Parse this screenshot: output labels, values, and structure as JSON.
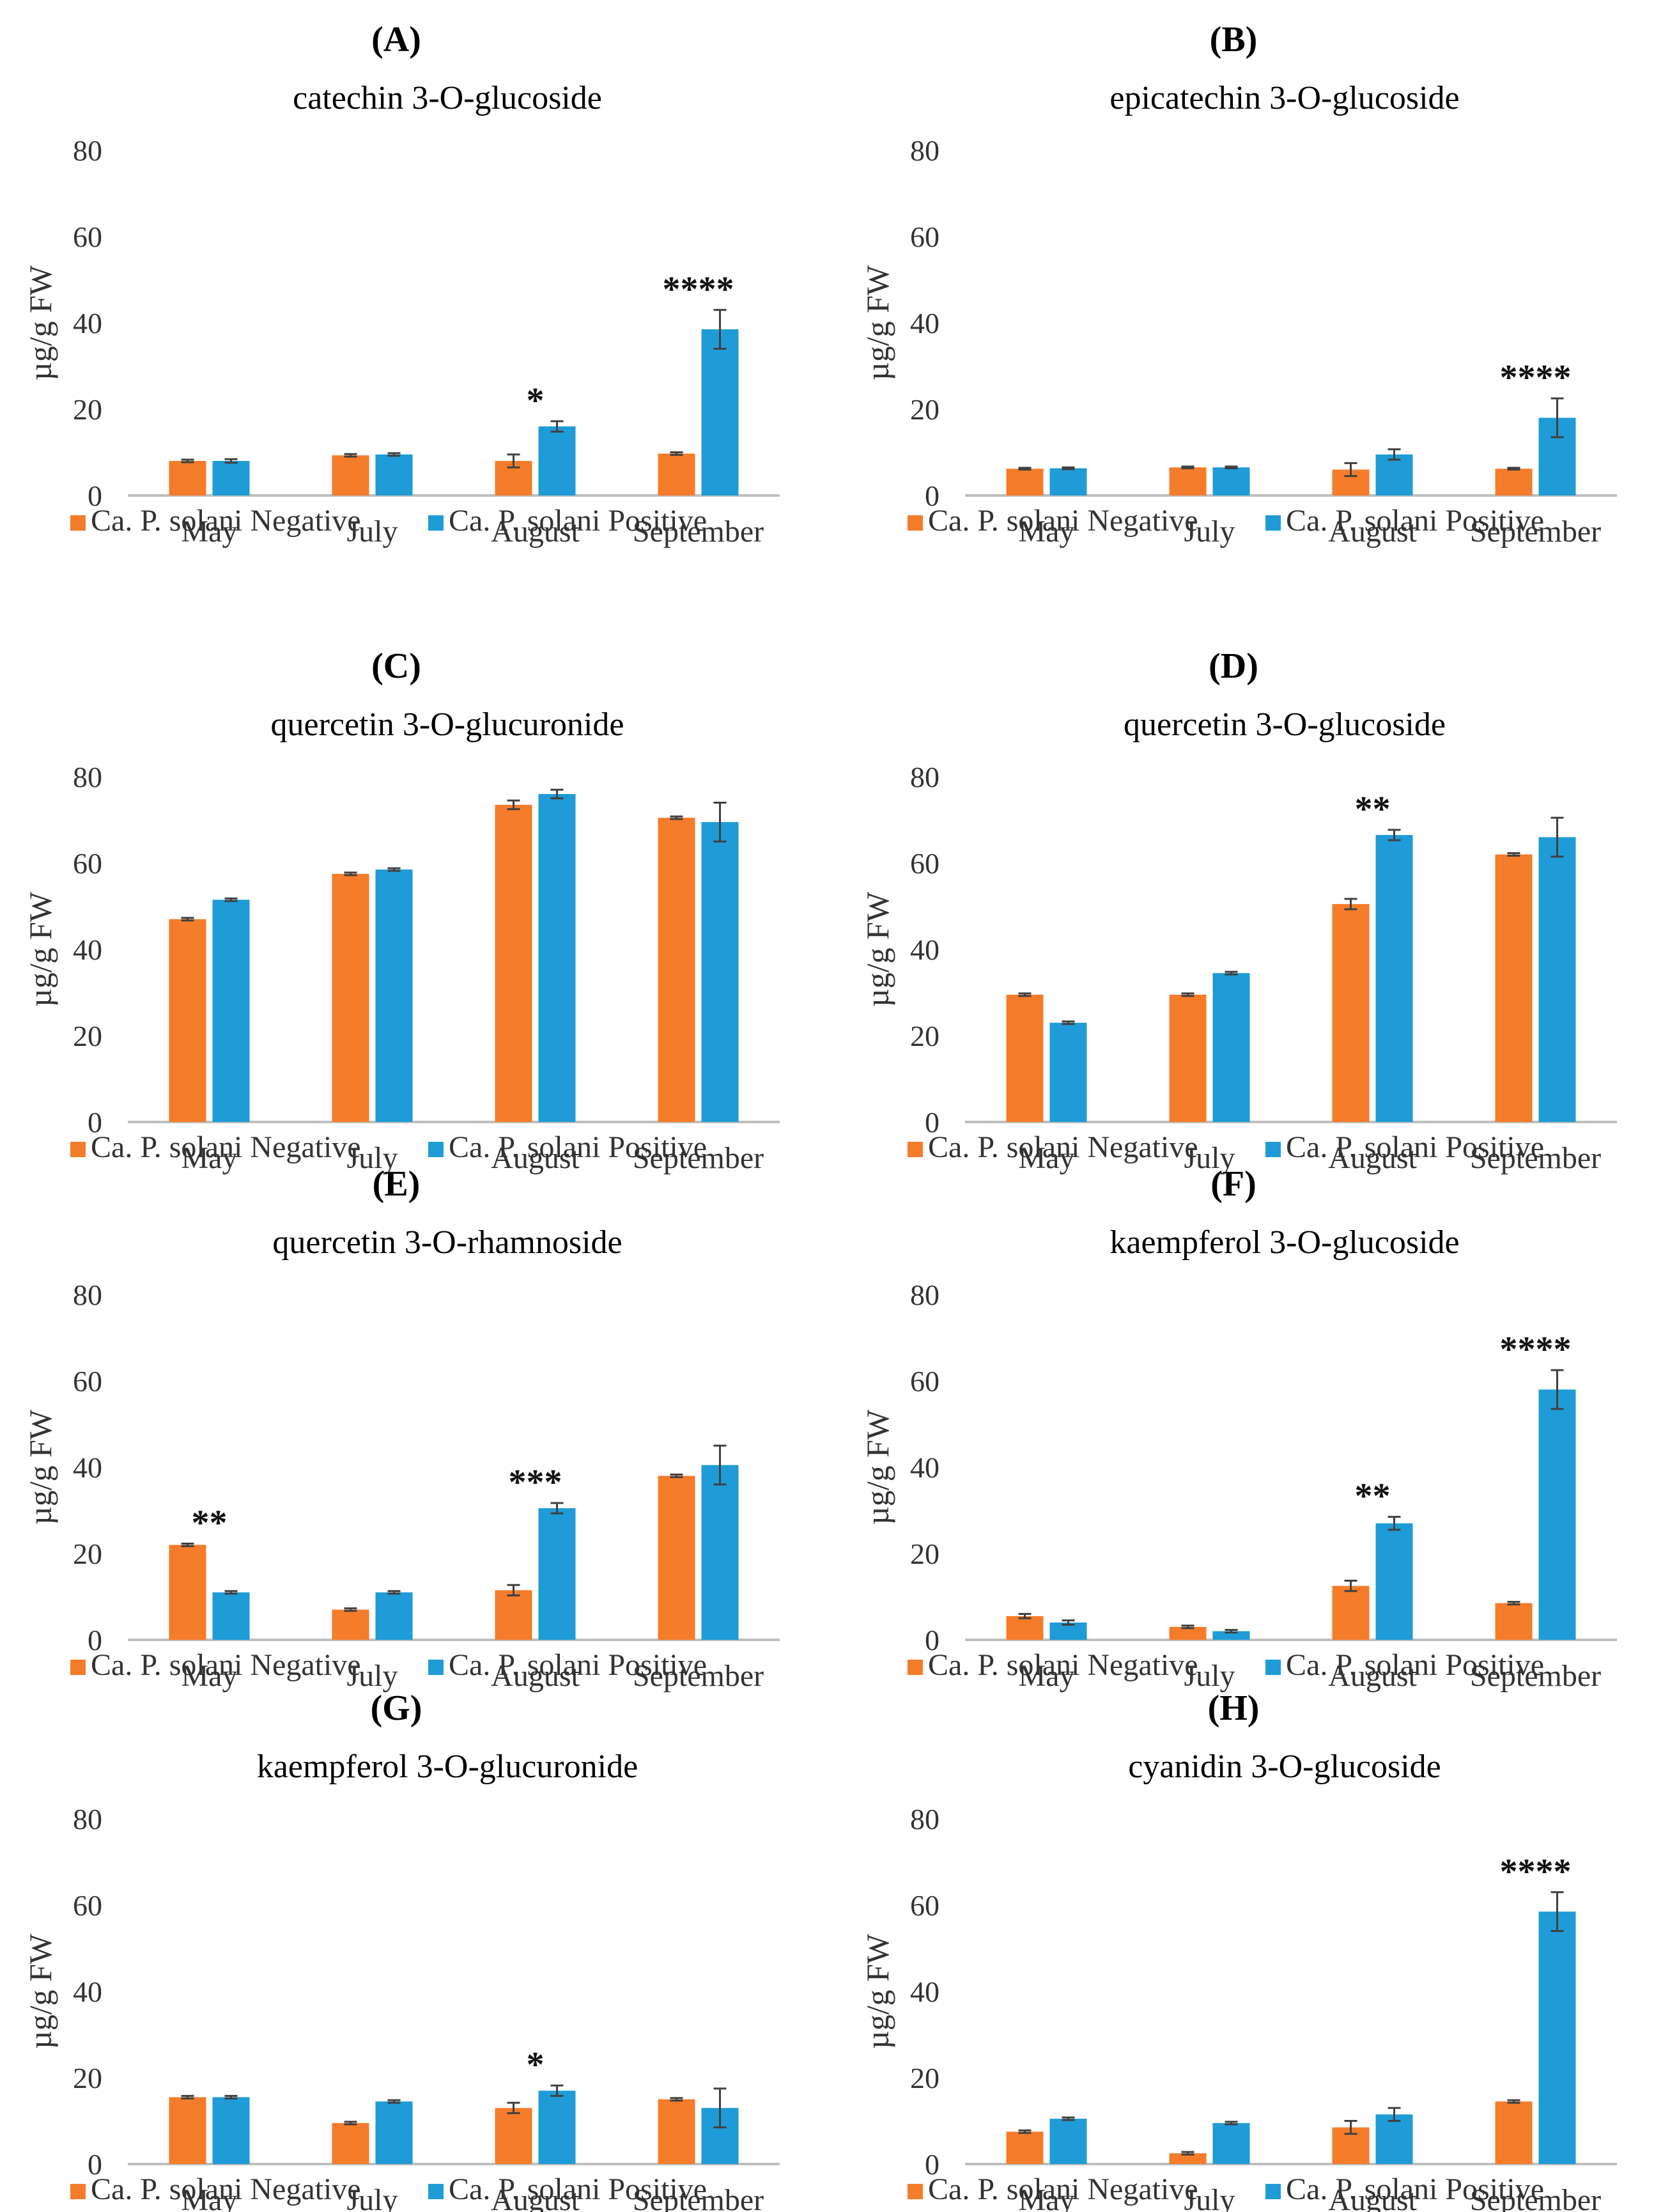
{
  "colors": {
    "negative": "#f57c2a",
    "positive": "#1f9bd7",
    "axis": "#bfbfbf",
    "errorbar": "#404040"
  },
  "legend": {
    "negative": "Ca. P. solani Negative",
    "positive": "Ca. P. solani Positive"
  },
  "chart_data": [
    {
      "panel": "(A)",
      "type": "bar",
      "title": "catechin 3-O-glucoside",
      "ylabel": "µg/g FW",
      "ylim": [
        0,
        80
      ],
      "yticks": [
        0,
        20,
        40,
        60,
        80
      ],
      "categories": [
        "May",
        "July",
        "August",
        "September"
      ],
      "series": [
        {
          "name": "Ca. P. solani Negative",
          "values": [
            8,
            9.3,
            8,
            9.7
          ],
          "errors": [
            0.3,
            0.3,
            1.5,
            0.3
          ]
        },
        {
          "name": "Ca. P. solani Positive",
          "values": [
            8,
            9.5,
            16,
            38.5
          ],
          "errors": [
            0.4,
            0.3,
            1.2,
            4.5
          ]
        }
      ],
      "significance": [
        "",
        "",
        "*",
        "****"
      ]
    },
    {
      "panel": "(B)",
      "type": "bar",
      "title": "epicatechin 3-O-glucoside",
      "ylabel": "µg/g FW",
      "ylim": [
        0,
        80
      ],
      "yticks": [
        0,
        20,
        40,
        60,
        80
      ],
      "categories": [
        "May",
        "July",
        "August",
        "September"
      ],
      "series": [
        {
          "name": "Ca. P. solani Negative",
          "values": [
            6.2,
            6.5,
            6,
            6.2
          ],
          "errors": [
            0.2,
            0.2,
            1.5,
            0.2
          ]
        },
        {
          "name": "Ca. P. solani Positive",
          "values": [
            6.3,
            6.5,
            9.5,
            18
          ],
          "errors": [
            0.2,
            0.2,
            1.2,
            4.5
          ]
        }
      ],
      "significance": [
        "",
        "",
        "",
        "****"
      ]
    },
    {
      "panel": "(C)",
      "type": "bar",
      "title": "quercetin 3-O-glucuronide",
      "ylabel": "µg/g FW",
      "ylim": [
        0,
        80
      ],
      "yticks": [
        0,
        20,
        40,
        60,
        80
      ],
      "categories": [
        "May",
        "July",
        "August",
        "September"
      ],
      "series": [
        {
          "name": "Ca. P. solani Negative",
          "values": [
            47,
            57.5,
            73.5,
            70.5
          ],
          "errors": [
            0.3,
            0.3,
            1.0,
            0.3
          ]
        },
        {
          "name": "Ca. P. solani Positive",
          "values": [
            51.5,
            58.5,
            76,
            69.5
          ],
          "errors": [
            0.3,
            0.3,
            1.0,
            4.5
          ]
        }
      ],
      "significance": [
        "",
        "",
        "",
        ""
      ]
    },
    {
      "panel": "(D)",
      "type": "bar",
      "title": "quercetin 3-O-glucoside",
      "ylabel": "µg/g FW",
      "ylim": [
        0,
        80
      ],
      "yticks": [
        0,
        20,
        40,
        60,
        80
      ],
      "categories": [
        "May",
        "July",
        "August",
        "September"
      ],
      "series": [
        {
          "name": "Ca. P. solani Negative",
          "values": [
            29.5,
            29.5,
            50.5,
            62
          ],
          "errors": [
            0.3,
            0.3,
            1.2,
            0.3
          ]
        },
        {
          "name": "Ca. P. solani Positive",
          "values": [
            23,
            34.5,
            66.5,
            66
          ],
          "errors": [
            0.3,
            0.3,
            1.2,
            4.5
          ]
        }
      ],
      "significance": [
        "",
        "",
        "**",
        ""
      ]
    },
    {
      "panel": "(E)",
      "type": "bar",
      "title": "quercetin 3-O-rhamnoside",
      "ylabel": "µg/g FW",
      "ylim": [
        0,
        80
      ],
      "yticks": [
        0,
        20,
        40,
        60,
        80
      ],
      "categories": [
        "May",
        "July",
        "August",
        "September"
      ],
      "series": [
        {
          "name": "Ca. P. solani Negative",
          "values": [
            22,
            7,
            11.5,
            38
          ],
          "errors": [
            0.3,
            0.3,
            1.2,
            0.3
          ]
        },
        {
          "name": "Ca. P. solani Positive",
          "values": [
            11,
            11,
            30.5,
            40.5
          ],
          "errors": [
            0.3,
            0.3,
            1.2,
            4.5
          ]
        }
      ],
      "significance": [
        "**",
        "",
        "***",
        ""
      ]
    },
    {
      "panel": "(F)",
      "type": "bar",
      "title": "kaempferol 3-O-glucoside",
      "ylabel": "µg/g FW",
      "ylim": [
        0,
        80
      ],
      "yticks": [
        0,
        20,
        40,
        60,
        80
      ],
      "categories": [
        "May",
        "July",
        "August",
        "September"
      ],
      "series": [
        {
          "name": "Ca. P. solani Negative",
          "values": [
            5.5,
            3,
            12.5,
            8.5
          ],
          "errors": [
            0.5,
            0.3,
            1.2,
            0.3
          ]
        },
        {
          "name": "Ca. P. solani Positive",
          "values": [
            4,
            2,
            27,
            58
          ],
          "errors": [
            0.5,
            0.3,
            1.5,
            4.5
          ]
        }
      ],
      "significance": [
        "",
        "",
        "**",
        "****"
      ]
    },
    {
      "panel": "(G)",
      "type": "bar",
      "title": "kaempferol 3-O-glucuronide",
      "ylabel": "µg/g FW",
      "ylim": [
        0,
        80
      ],
      "yticks": [
        0,
        20,
        40,
        60,
        80
      ],
      "categories": [
        "May",
        "July",
        "August",
        "September"
      ],
      "series": [
        {
          "name": "Ca. P. solani Negative",
          "values": [
            15.5,
            9.5,
            13,
            15
          ],
          "errors": [
            0.3,
            0.3,
            1.2,
            0.3
          ]
        },
        {
          "name": "Ca. P. solani Positive",
          "values": [
            15.5,
            14.5,
            17,
            13
          ],
          "errors": [
            0.3,
            0.3,
            1.2,
            4.5
          ]
        }
      ],
      "significance": [
        "",
        "",
        "*",
        ""
      ]
    },
    {
      "panel": "(H)",
      "type": "bar",
      "title": "cyanidin 3-O-glucoside",
      "ylabel": "µg/g FW",
      "ylim": [
        0,
        80
      ],
      "yticks": [
        0,
        20,
        40,
        60,
        80
      ],
      "categories": [
        "May",
        "July",
        "August",
        "September"
      ],
      "series": [
        {
          "name": "Ca. P. solani Negative",
          "values": [
            7.5,
            2.5,
            8.5,
            14.5
          ],
          "errors": [
            0.3,
            0.3,
            1.5,
            0.3
          ]
        },
        {
          "name": "Ca. P. solani Positive",
          "values": [
            10.5,
            9.5,
            11.5,
            58.5
          ],
          "errors": [
            0.3,
            0.3,
            1.5,
            4.5
          ]
        }
      ],
      "significance": [
        "",
        "",
        "",
        "****"
      ]
    }
  ]
}
